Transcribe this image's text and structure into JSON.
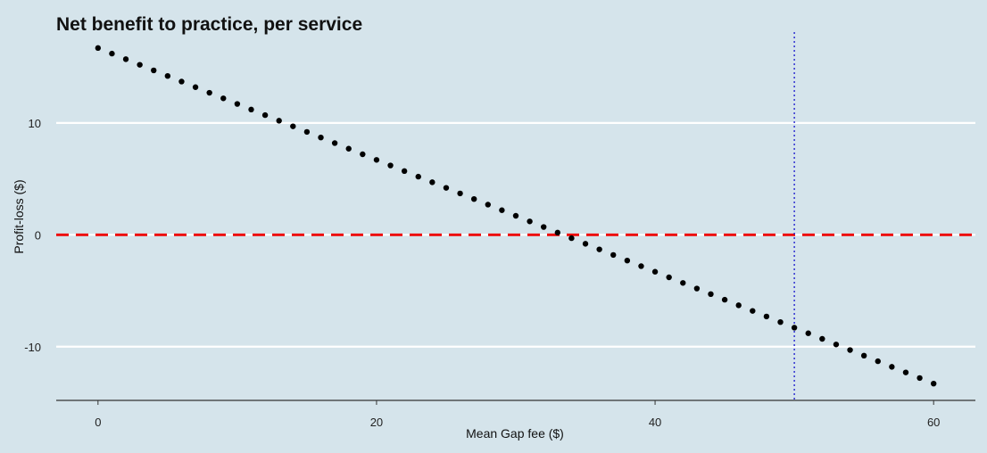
{
  "chart_data": {
    "type": "scatter",
    "title": "Net benefit to practice, per service",
    "xlabel": "Mean Gap fee ($)",
    "ylabel": "Profit-loss ($)",
    "xlim": [
      -3,
      63
    ],
    "ylim": [
      -14.8,
      18.6
    ],
    "x_ticks": [
      0,
      20,
      40,
      60
    ],
    "y_ticks": [
      -10,
      0,
      10
    ],
    "grid": "horizontal major lines (white)",
    "points": {
      "x_start": 0,
      "x_end": 60,
      "x_step": 1,
      "y_at_x0": 16.7,
      "slope_per_dollar": -0.5
    },
    "reference_lines": [
      {
        "orientation": "horizontal",
        "value": 0,
        "style": "dashed",
        "color": "#ee0000"
      },
      {
        "orientation": "vertical",
        "value": 50,
        "style": "dotted",
        "color": "#2f2fd0"
      }
    ],
    "colors": {
      "background": "#d5e4eb",
      "points": "#000000",
      "grid": "#ffffff",
      "axis": "#333333"
    }
  }
}
